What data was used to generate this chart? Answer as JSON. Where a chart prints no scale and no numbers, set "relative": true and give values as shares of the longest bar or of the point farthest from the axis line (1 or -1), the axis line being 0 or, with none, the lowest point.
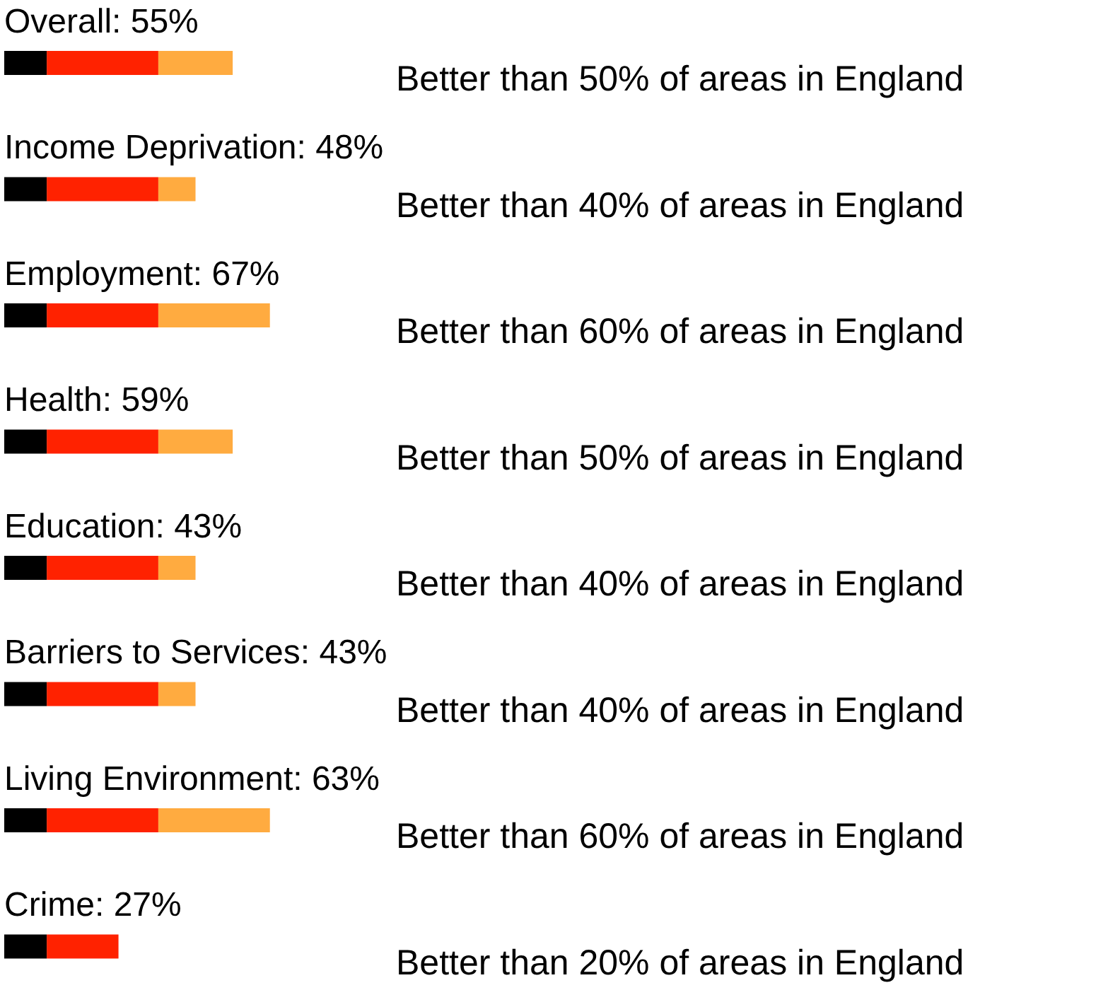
{
  "chart_data": {
    "type": "bar",
    "orientation": "horizontal",
    "stacked": true,
    "relative": true,
    "categories": [
      "Overall: 55%",
      "Income Deprivation: 48%",
      "Employment: 67%",
      "Health: 59%",
      "Education: 43%",
      "Barriers to Services: 43%",
      "Living Environment: 63%",
      "Crime: 27%"
    ],
    "series": [
      {
        "color": "#000000",
        "values": [
          0.16,
          0.16,
          0.16,
          0.16,
          0.16,
          0.16,
          0.16,
          0.16
        ]
      },
      {
        "color": "#ff2200",
        "values": [
          0.42,
          0.42,
          0.42,
          0.42,
          0.42,
          0.42,
          0.42,
          0.27
        ]
      },
      {
        "color": "#ffab40",
        "values": [
          0.28,
          0.14,
          0.42,
          0.28,
          0.14,
          0.14,
          0.42,
          0
        ]
      }
    ],
    "value_labels": [
      "Better than 50% of areas in England",
      "Better than 40% of areas in England",
      "Better than 60% of areas in England",
      "Better than 50% of areas in England",
      "Better than 40% of areas in England",
      "Better than 40% of areas in England",
      "Better than 60% of areas in England",
      "Better than 20% of areas in England"
    ]
  }
}
